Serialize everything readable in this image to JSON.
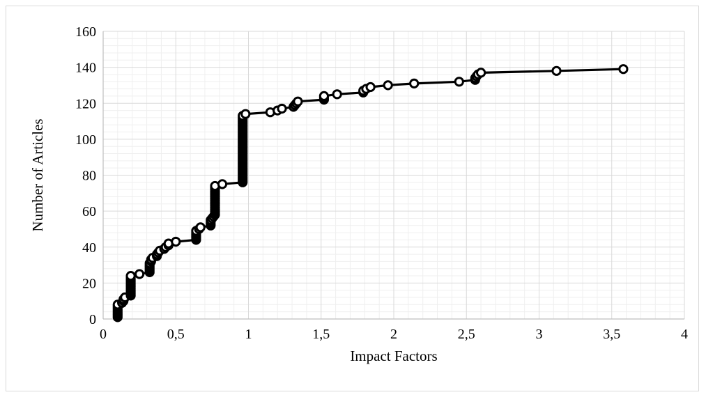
{
  "chart_data": {
    "type": "scatter",
    "style": "line-with-markers",
    "title": "",
    "xlabel": "Impact Factors",
    "ylabel": "Number of Articles",
    "xlim": [
      0,
      4
    ],
    "ylim": [
      0,
      160
    ],
    "x_ticks": [
      0,
      0.5,
      1,
      1.5,
      2,
      2.5,
      3,
      3.5,
      4
    ],
    "x_tick_labels": [
      "0",
      "0,5",
      "1",
      "1,5",
      "2",
      "2,5",
      "3",
      "3,5",
      "4"
    ],
    "y_ticks": [
      0,
      20,
      40,
      60,
      80,
      100,
      120,
      140,
      160
    ],
    "y_tick_labels": [
      "0",
      "20",
      "40",
      "60",
      "80",
      "100",
      "120",
      "140",
      "160"
    ],
    "grid": {
      "major": true,
      "minor": true
    },
    "legend": "none",
    "colors": {
      "line": "#000000",
      "marker_fill": "#ffffff",
      "marker_edge": "#000000",
      "grid_major": "#d9d9d9",
      "grid_minor": "#efefef"
    },
    "series": [
      {
        "points": [
          [
            0.1,
            1
          ],
          [
            0.1,
            2
          ],
          [
            0.1,
            3
          ],
          [
            0.1,
            4
          ],
          [
            0.1,
            5
          ],
          [
            0.1,
            6
          ],
          [
            0.1,
            7
          ],
          [
            0.1,
            8
          ],
          [
            0.13,
            9
          ],
          [
            0.14,
            10
          ],
          [
            0.14,
            11
          ],
          [
            0.15,
            12
          ],
          [
            0.19,
            13
          ],
          [
            0.19,
            14
          ],
          [
            0.19,
            15
          ],
          [
            0.19,
            16
          ],
          [
            0.19,
            17
          ],
          [
            0.19,
            18
          ],
          [
            0.19,
            19
          ],
          [
            0.19,
            20
          ],
          [
            0.19,
            21
          ],
          [
            0.19,
            22
          ],
          [
            0.19,
            23
          ],
          [
            0.19,
            24
          ],
          [
            0.25,
            25
          ],
          [
            0.32,
            26
          ],
          [
            0.32,
            27
          ],
          [
            0.32,
            28
          ],
          [
            0.32,
            29
          ],
          [
            0.32,
            30
          ],
          [
            0.32,
            31
          ],
          [
            0.33,
            32
          ],
          [
            0.33,
            33
          ],
          [
            0.34,
            34
          ],
          [
            0.37,
            35
          ],
          [
            0.37,
            36
          ],
          [
            0.38,
            37
          ],
          [
            0.39,
            38
          ],
          [
            0.42,
            39
          ],
          [
            0.43,
            40
          ],
          [
            0.45,
            41
          ],
          [
            0.45,
            42
          ],
          [
            0.5,
            43
          ],
          [
            0.64,
            44
          ],
          [
            0.64,
            45
          ],
          [
            0.64,
            46
          ],
          [
            0.64,
            47
          ],
          [
            0.64,
            48
          ],
          [
            0.64,
            49
          ],
          [
            0.66,
            50
          ],
          [
            0.67,
            51
          ],
          [
            0.74,
            52
          ],
          [
            0.74,
            53
          ],
          [
            0.74,
            54
          ],
          [
            0.74,
            55
          ],
          [
            0.75,
            56
          ],
          [
            0.76,
            57
          ],
          [
            0.77,
            58
          ],
          [
            0.77,
            59
          ],
          [
            0.77,
            60
          ],
          [
            0.77,
            61
          ],
          [
            0.77,
            62
          ],
          [
            0.77,
            63
          ],
          [
            0.77,
            64
          ],
          [
            0.77,
            65
          ],
          [
            0.77,
            66
          ],
          [
            0.77,
            67
          ],
          [
            0.77,
            68
          ],
          [
            0.77,
            69
          ],
          [
            0.77,
            70
          ],
          [
            0.77,
            71
          ],
          [
            0.77,
            72
          ],
          [
            0.77,
            73
          ],
          [
            0.77,
            74
          ],
          [
            0.82,
            75
          ],
          [
            0.96,
            76
          ],
          [
            0.96,
            77
          ],
          [
            0.96,
            78
          ],
          [
            0.96,
            79
          ],
          [
            0.96,
            80
          ],
          [
            0.96,
            81
          ],
          [
            0.96,
            82
          ],
          [
            0.96,
            83
          ],
          [
            0.96,
            84
          ],
          [
            0.96,
            85
          ],
          [
            0.96,
            86
          ],
          [
            0.96,
            87
          ],
          [
            0.96,
            88
          ],
          [
            0.96,
            89
          ],
          [
            0.96,
            90
          ],
          [
            0.96,
            91
          ],
          [
            0.96,
            92
          ],
          [
            0.96,
            93
          ],
          [
            0.96,
            94
          ],
          [
            0.96,
            95
          ],
          [
            0.96,
            96
          ],
          [
            0.96,
            97
          ],
          [
            0.96,
            98
          ],
          [
            0.96,
            99
          ],
          [
            0.96,
            100
          ],
          [
            0.96,
            101
          ],
          [
            0.96,
            102
          ],
          [
            0.96,
            103
          ],
          [
            0.96,
            104
          ],
          [
            0.96,
            105
          ],
          [
            0.96,
            106
          ],
          [
            0.96,
            107
          ],
          [
            0.96,
            108
          ],
          [
            0.96,
            109
          ],
          [
            0.96,
            110
          ],
          [
            0.96,
            111
          ],
          [
            0.96,
            112
          ],
          [
            0.96,
            113
          ],
          [
            0.98,
            114
          ],
          [
            1.15,
            115
          ],
          [
            1.2,
            116
          ],
          [
            1.23,
            117
          ],
          [
            1.31,
            118
          ],
          [
            1.32,
            119
          ],
          [
            1.33,
            120
          ],
          [
            1.34,
            121
          ],
          [
            1.52,
            122
          ],
          [
            1.52,
            123
          ],
          [
            1.52,
            124
          ],
          [
            1.61,
            125
          ],
          [
            1.79,
            126
          ],
          [
            1.79,
            127
          ],
          [
            1.81,
            128
          ],
          [
            1.84,
            129
          ],
          [
            1.96,
            130
          ],
          [
            2.14,
            131
          ],
          [
            2.45,
            132
          ],
          [
            2.56,
            133
          ],
          [
            2.56,
            134
          ],
          [
            2.57,
            135
          ],
          [
            2.58,
            136
          ],
          [
            2.6,
            137
          ],
          [
            3.12,
            138
          ],
          [
            3.58,
            139
          ]
        ]
      }
    ]
  }
}
